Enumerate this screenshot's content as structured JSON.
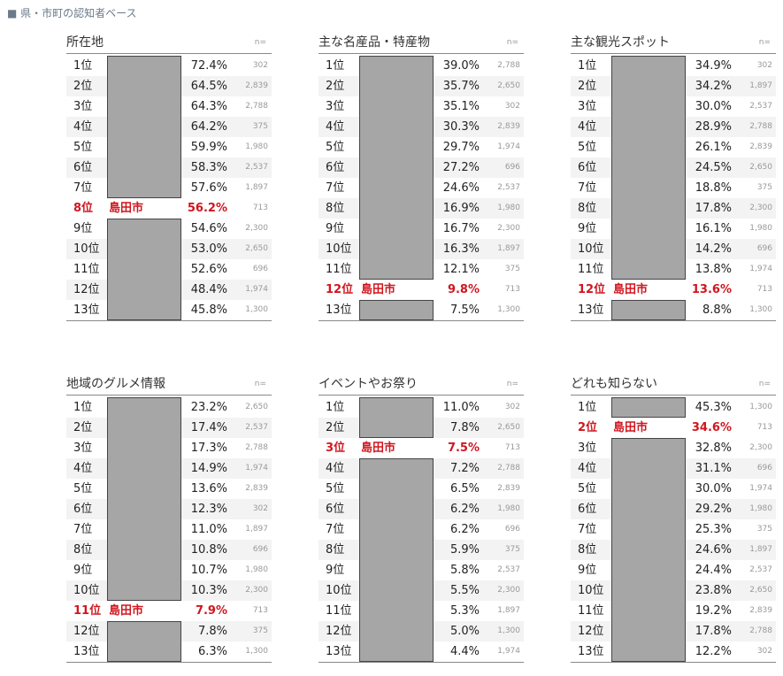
{
  "header": "■ 県・市町の認知者ベース",
  "n_label": "n=",
  "tables": [
    {
      "title": "所在地",
      "rows": [
        {
          "rank": "1位",
          "pct": "72.4%",
          "n": "302"
        },
        {
          "rank": "2位",
          "pct": "64.5%",
          "n": "2,839"
        },
        {
          "rank": "3位",
          "pct": "64.3%",
          "n": "2,788"
        },
        {
          "rank": "4位",
          "pct": "64.2%",
          "n": "375"
        },
        {
          "rank": "5位",
          "pct": "59.9%",
          "n": "1,980"
        },
        {
          "rank": "6位",
          "pct": "58.3%",
          "n": "2,537"
        },
        {
          "rank": "7位",
          "pct": "57.6%",
          "n": "1,897"
        },
        {
          "rank": "8位",
          "name": "島田市",
          "pct": "56.2%",
          "n": "713"
        },
        {
          "rank": "9位",
          "pct": "54.6%",
          "n": "2,300"
        },
        {
          "rank": "10位",
          "pct": "53.0%",
          "n": "2,650"
        },
        {
          "rank": "11位",
          "pct": "52.6%",
          "n": "696"
        },
        {
          "rank": "12位",
          "pct": "48.4%",
          "n": "1,974"
        },
        {
          "rank": "13位",
          "pct": "45.8%",
          "n": "1,300"
        }
      ]
    },
    {
      "title": "主な名産品・特産物",
      "rows": [
        {
          "rank": "1位",
          "pct": "39.0%",
          "n": "2,788"
        },
        {
          "rank": "2位",
          "pct": "35.7%",
          "n": "2,650"
        },
        {
          "rank": "3位",
          "pct": "35.1%",
          "n": "302"
        },
        {
          "rank": "4位",
          "pct": "30.3%",
          "n": "2,839"
        },
        {
          "rank": "5位",
          "pct": "29.7%",
          "n": "1,974"
        },
        {
          "rank": "6位",
          "pct": "27.2%",
          "n": "696"
        },
        {
          "rank": "7位",
          "pct": "24.6%",
          "n": "2,537"
        },
        {
          "rank": "8位",
          "pct": "16.9%",
          "n": "1,980"
        },
        {
          "rank": "9位",
          "pct": "16.7%",
          "n": "2,300"
        },
        {
          "rank": "10位",
          "pct": "16.3%",
          "n": "1,897"
        },
        {
          "rank": "11位",
          "pct": "12.1%",
          "n": "375"
        },
        {
          "rank": "12位",
          "name": "島田市",
          "pct": "9.8%",
          "n": "713"
        },
        {
          "rank": "13位",
          "pct": "7.5%",
          "n": "1,300"
        }
      ]
    },
    {
      "title": "主な観光スポット",
      "rows": [
        {
          "rank": "1位",
          "pct": "34.9%",
          "n": "302"
        },
        {
          "rank": "2位",
          "pct": "34.2%",
          "n": "1,897"
        },
        {
          "rank": "3位",
          "pct": "30.0%",
          "n": "2,537"
        },
        {
          "rank": "4位",
          "pct": "28.9%",
          "n": "2,788"
        },
        {
          "rank": "5位",
          "pct": "26.1%",
          "n": "2,839"
        },
        {
          "rank": "6位",
          "pct": "24.5%",
          "n": "2,650"
        },
        {
          "rank": "7位",
          "pct": "18.8%",
          "n": "375"
        },
        {
          "rank": "8位",
          "pct": "17.8%",
          "n": "2,300"
        },
        {
          "rank": "9位",
          "pct": "16.1%",
          "n": "1,980"
        },
        {
          "rank": "10位",
          "pct": "14.2%",
          "n": "696"
        },
        {
          "rank": "11位",
          "pct": "13.8%",
          "n": "1,974"
        },
        {
          "rank": "12位",
          "name": "島田市",
          "pct": "13.6%",
          "n": "713"
        },
        {
          "rank": "13位",
          "pct": "8.8%",
          "n": "1,300"
        }
      ]
    },
    {
      "title": "地域のグルメ情報",
      "rows": [
        {
          "rank": "1位",
          "pct": "23.2%",
          "n": "2,650"
        },
        {
          "rank": "2位",
          "pct": "17.4%",
          "n": "2,537"
        },
        {
          "rank": "3位",
          "pct": "17.3%",
          "n": "2,788"
        },
        {
          "rank": "4位",
          "pct": "14.9%",
          "n": "1,974"
        },
        {
          "rank": "5位",
          "pct": "13.6%",
          "n": "2,839"
        },
        {
          "rank": "6位",
          "pct": "12.3%",
          "n": "302"
        },
        {
          "rank": "7位",
          "pct": "11.0%",
          "n": "1,897"
        },
        {
          "rank": "8位",
          "pct": "10.8%",
          "n": "696"
        },
        {
          "rank": "9位",
          "pct": "10.7%",
          "n": "1,980"
        },
        {
          "rank": "10位",
          "pct": "10.3%",
          "n": "2,300"
        },
        {
          "rank": "11位",
          "name": "島田市",
          "pct": "7.9%",
          "n": "713"
        },
        {
          "rank": "12位",
          "pct": "7.8%",
          "n": "375"
        },
        {
          "rank": "13位",
          "pct": "6.3%",
          "n": "1,300"
        }
      ]
    },
    {
      "title": "イベントやお祭り",
      "rows": [
        {
          "rank": "1位",
          "pct": "11.0%",
          "n": "302"
        },
        {
          "rank": "2位",
          "pct": "7.8%",
          "n": "2,650"
        },
        {
          "rank": "3位",
          "name": "島田市",
          "pct": "7.5%",
          "n": "713"
        },
        {
          "rank": "4位",
          "pct": "7.2%",
          "n": "2,788"
        },
        {
          "rank": "5位",
          "pct": "6.5%",
          "n": "2,839"
        },
        {
          "rank": "6位",
          "pct": "6.2%",
          "n": "1,980"
        },
        {
          "rank": "7位",
          "pct": "6.2%",
          "n": "696"
        },
        {
          "rank": "8位",
          "pct": "5.9%",
          "n": "375"
        },
        {
          "rank": "9位",
          "pct": "5.8%",
          "n": "2,537"
        },
        {
          "rank": "10位",
          "pct": "5.5%",
          "n": "2,300"
        },
        {
          "rank": "11位",
          "pct": "5.3%",
          "n": "1,897"
        },
        {
          "rank": "12位",
          "pct": "5.0%",
          "n": "1,300"
        },
        {
          "rank": "13位",
          "pct": "4.4%",
          "n": "1,974"
        }
      ]
    },
    {
      "title": "どれも知らない",
      "rows": [
        {
          "rank": "1位",
          "pct": "45.3%",
          "n": "1,300"
        },
        {
          "rank": "2位",
          "name": "島田市",
          "pct": "34.6%",
          "n": "713"
        },
        {
          "rank": "3位",
          "pct": "32.8%",
          "n": "2,300"
        },
        {
          "rank": "4位",
          "pct": "31.1%",
          "n": "696"
        },
        {
          "rank": "5位",
          "pct": "30.0%",
          "n": "1,974"
        },
        {
          "rank": "6位",
          "pct": "29.2%",
          "n": "1,980"
        },
        {
          "rank": "7位",
          "pct": "25.3%",
          "n": "375"
        },
        {
          "rank": "8位",
          "pct": "24.6%",
          "n": "1,897"
        },
        {
          "rank": "9位",
          "pct": "24.4%",
          "n": "2,537"
        },
        {
          "rank": "10位",
          "pct": "23.8%",
          "n": "2,650"
        },
        {
          "rank": "11位",
          "pct": "19.2%",
          "n": "2,839"
        },
        {
          "rank": "12位",
          "pct": "17.8%",
          "n": "2,788"
        },
        {
          "rank": "13位",
          "pct": "12.2%",
          "n": "302"
        }
      ]
    }
  ]
}
